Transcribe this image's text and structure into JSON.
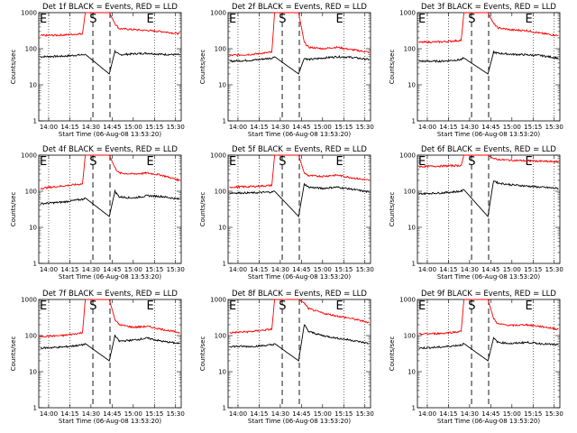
{
  "colors": {
    "events": "#000000",
    "lld": "#ff0000",
    "background": "#ffffff"
  },
  "chart_data": [
    {
      "type": "line",
      "title": "Det 1f BLACK = Events, RED = LLD",
      "xlabel": "Start Time (06-Aug-08 13:53:20)",
      "ylabel": "Counts/sec",
      "x_ticklabels": [
        "14:00",
        "14:15",
        "14:30",
        "14:45",
        "15:00",
        "15:15",
        "15:30"
      ],
      "y_ticklabels": [
        "1",
        "10",
        "100",
        "1000"
      ],
      "ylim": [
        1,
        1000
      ],
      "yscale": "log",
      "xlim": [
        "13:53",
        "15:34"
      ],
      "markers": [
        "E",
        "S",
        "E"
      ],
      "series": [
        {
          "color": "#000000",
          "x": [
            "13:54",
            "14:10",
            "14:24",
            "14:26",
            "14:43",
            "14:47",
            "14:50",
            "15:00",
            "15:10",
            "15:20",
            "15:33"
          ],
          "values": [
            60,
            62,
            68,
            70,
            20,
            85,
            68,
            72,
            75,
            70,
            68
          ]
        },
        {
          "color": "#ff0000",
          "x": [
            "13:54",
            "14:10",
            "14:24",
            "14:26",
            "14:43",
            "14:47",
            "14:50",
            "15:00",
            "15:10",
            "15:20",
            "15:33"
          ],
          "values": [
            230,
            240,
            260,
            1000,
            1000,
            500,
            360,
            340,
            320,
            300,
            260
          ]
        }
      ]
    },
    {
      "type": "line",
      "title": "Det 2f BLACK = Events, RED = LLD",
      "xlabel": "Start Time (06-Aug-08 13:53:20)",
      "ylabel": "Counts/sec",
      "x_ticklabels": [
        "14:00",
        "14:15",
        "14:30",
        "14:45",
        "15:00",
        "15:15",
        "15:30"
      ],
      "y_ticklabels": [
        "1",
        "10",
        "100",
        "1000"
      ],
      "ylim": [
        1,
        1000
      ],
      "yscale": "log",
      "xlim": [
        "13:53",
        "15:34"
      ],
      "markers": [
        "E",
        "S",
        "E"
      ],
      "series": [
        {
          "color": "#000000",
          "x": [
            "13:54",
            "14:10",
            "14:24",
            "14:26",
            "14:43",
            "14:47",
            "14:50",
            "15:00",
            "15:10",
            "15:20",
            "15:33"
          ],
          "values": [
            45,
            48,
            55,
            60,
            20,
            55,
            50,
            55,
            60,
            58,
            50
          ]
        },
        {
          "color": "#ff0000",
          "x": [
            "13:54",
            "14:10",
            "14:24",
            "14:26",
            "14:43",
            "14:47",
            "14:50",
            "15:00",
            "15:10",
            "15:20",
            "15:33"
          ],
          "values": [
            65,
            70,
            80,
            1000,
            1000,
            150,
            110,
            100,
            110,
            95,
            80
          ]
        }
      ]
    },
    {
      "type": "line",
      "title": "Det 3f BLACK = Events, RED = LLD",
      "xlabel": "Start Time (06-Aug-08 13:53:20)",
      "ylabel": "Counts/sec",
      "x_ticklabels": [
        "14:00",
        "14:15",
        "14:30",
        "14:45",
        "15:00",
        "15:15",
        "15:30"
      ],
      "y_ticklabels": [
        "1",
        "10",
        "100",
        "1000"
      ],
      "ylim": [
        1,
        1000
      ],
      "yscale": "log",
      "xlim": [
        "13:53",
        "15:34"
      ],
      "markers": [
        "E",
        "S",
        "E"
      ],
      "series": [
        {
          "color": "#000000",
          "x": [
            "13:54",
            "14:10",
            "14:24",
            "14:26",
            "14:43",
            "14:47",
            "14:50",
            "15:00",
            "15:10",
            "15:20",
            "15:33"
          ],
          "values": [
            45,
            45,
            50,
            55,
            20,
            80,
            75,
            70,
            68,
            65,
            55
          ]
        },
        {
          "color": "#ff0000",
          "x": [
            "13:54",
            "14:10",
            "14:24",
            "14:26",
            "14:43",
            "14:47",
            "14:50",
            "15:00",
            "15:10",
            "15:20",
            "15:33"
          ],
          "values": [
            150,
            155,
            170,
            1000,
            1000,
            500,
            380,
            330,
            320,
            270,
            230
          ]
        }
      ]
    },
    {
      "type": "line",
      "title": "Det 4f BLACK = Events, RED = LLD",
      "xlabel": "Start Time (06-Aug-08 13:53:20)",
      "ylabel": "Counts/sec",
      "x_ticklabels": [
        "14:00",
        "14:15",
        "14:30",
        "14:45",
        "15:00",
        "15:15",
        "15:30"
      ],
      "y_ticklabels": [
        "1",
        "10",
        "100",
        "1000"
      ],
      "ylim": [
        1,
        1000
      ],
      "yscale": "log",
      "xlim": [
        "13:53",
        "15:34"
      ],
      "markers": [
        "E",
        "S",
        "E"
      ],
      "series": [
        {
          "color": "#000000",
          "x": [
            "13:54",
            "14:10",
            "14:24",
            "14:26",
            "14:43",
            "14:47",
            "14:50",
            "15:00",
            "15:10",
            "15:20",
            "15:33"
          ],
          "values": [
            45,
            50,
            60,
            65,
            20,
            100,
            70,
            65,
            75,
            72,
            60
          ]
        },
        {
          "color": "#ff0000",
          "x": [
            "13:54",
            "14:10",
            "14:24",
            "14:26",
            "14:43",
            "14:47",
            "14:50",
            "15:00",
            "15:10",
            "15:20",
            "15:33"
          ],
          "values": [
            120,
            140,
            160,
            1000,
            1000,
            450,
            320,
            300,
            320,
            280,
            200
          ]
        }
      ]
    },
    {
      "type": "line",
      "title": "Det 5f BLACK = Events, RED = LLD",
      "xlabel": "Start Time (06-Aug-08 13:53:20)",
      "ylabel": "Counts/sec",
      "x_ticklabels": [
        "14:00",
        "14:15",
        "14:30",
        "14:45",
        "15:00",
        "15:15",
        "15:30"
      ],
      "y_ticklabels": [
        "1",
        "10",
        "100",
        "1000"
      ],
      "ylim": [
        1,
        1000
      ],
      "yscale": "log",
      "xlim": [
        "13:53",
        "15:34"
      ],
      "markers": [
        "E",
        "S",
        "E"
      ],
      "series": [
        {
          "color": "#000000",
          "x": [
            "13:54",
            "14:10",
            "14:24",
            "14:26",
            "14:43",
            "14:47",
            "14:50",
            "15:00",
            "15:10",
            "15:20",
            "15:33"
          ],
          "values": [
            90,
            90,
            95,
            100,
            20,
            160,
            130,
            120,
            130,
            115,
            95
          ]
        },
        {
          "color": "#ff0000",
          "x": [
            "13:54",
            "14:10",
            "14:24",
            "14:26",
            "14:43",
            "14:47",
            "14:50",
            "15:00",
            "15:10",
            "15:20",
            "15:33"
          ],
          "values": [
            130,
            135,
            145,
            1000,
            1000,
            320,
            270,
            260,
            280,
            240,
            200
          ]
        }
      ]
    },
    {
      "type": "line",
      "title": "Det 6f BLACK = Events, RED = LLD",
      "xlabel": "Start Time (06-Aug-08 13:53:20)",
      "ylabel": "Counts/sec",
      "x_ticklabels": [
        "14:00",
        "14:15",
        "14:30",
        "14:45",
        "15:00",
        "15:15",
        "15:30"
      ],
      "y_ticklabels": [
        "1",
        "10",
        "100",
        "1000"
      ],
      "ylim": [
        1,
        1000
      ],
      "yscale": "log",
      "xlim": [
        "13:53",
        "15:34"
      ],
      "markers": [
        "E",
        "S",
        "E"
      ],
      "series": [
        {
          "color": "#000000",
          "x": [
            "13:54",
            "14:10",
            "14:24",
            "14:26",
            "14:43",
            "14:47",
            "14:50",
            "15:00",
            "15:10",
            "15:20",
            "15:33"
          ],
          "values": [
            85,
            90,
            100,
            110,
            20,
            200,
            170,
            150,
            140,
            130,
            120
          ]
        },
        {
          "color": "#ff0000",
          "x": [
            "13:54",
            "14:10",
            "14:24",
            "14:26",
            "14:43",
            "14:47",
            "14:50",
            "15:00",
            "15:10",
            "15:20",
            "15:33"
          ],
          "values": [
            480,
            500,
            520,
            1000,
            1000,
            800,
            760,
            720,
            700,
            680,
            650
          ]
        }
      ]
    },
    {
      "type": "line",
      "title": "Det 7f BLACK = Events, RED = LLD",
      "xlabel": "Start Time (06-Aug-08 13:53:20)",
      "ylabel": "Counts/sec",
      "x_ticklabels": [
        "14:00",
        "14:15",
        "14:30",
        "14:45",
        "15:00",
        "15:15",
        "15:30"
      ],
      "y_ticklabels": [
        "1",
        "10",
        "100",
        "1000"
      ],
      "ylim": [
        1,
        1000
      ],
      "yscale": "log",
      "xlim": [
        "13:53",
        "15:34"
      ],
      "markers": [
        "E",
        "S",
        "E"
      ],
      "series": [
        {
          "color": "#000000",
          "x": [
            "13:54",
            "14:10",
            "14:24",
            "14:26",
            "14:43",
            "14:47",
            "14:50",
            "15:00",
            "15:10",
            "15:20",
            "15:33"
          ],
          "values": [
            45,
            48,
            55,
            60,
            20,
            100,
            70,
            75,
            85,
            70,
            60
          ]
        },
        {
          "color": "#ff0000",
          "x": [
            "13:54",
            "14:10",
            "14:24",
            "14:26",
            "14:43",
            "14:47",
            "14:50",
            "15:00",
            "15:10",
            "15:20",
            "15:33"
          ],
          "values": [
            95,
            100,
            120,
            1000,
            1000,
            280,
            200,
            170,
            180,
            150,
            120
          ]
        }
      ]
    },
    {
      "type": "line",
      "title": "Det 8f BLACK = Events, RED = LLD",
      "xlabel": "Start Time (06-Aug-08 13:53:20)",
      "ylabel": "Counts/sec",
      "x_ticklabels": [
        "14:00",
        "14:15",
        "14:30",
        "14:45",
        "15:00",
        "15:15",
        "15:30"
      ],
      "y_ticklabels": [
        "1",
        "10",
        "100",
        "1000"
      ],
      "ylim": [
        1,
        1000
      ],
      "yscale": "log",
      "xlim": [
        "13:53",
        "15:34"
      ],
      "markers": [
        "E",
        "S",
        "E"
      ],
      "series": [
        {
          "color": "#000000",
          "x": [
            "13:54",
            "14:10",
            "14:24",
            "14:26",
            "14:43",
            "14:47",
            "14:50",
            "15:00",
            "15:10",
            "15:20",
            "15:33"
          ],
          "values": [
            50,
            50,
            55,
            60,
            20,
            200,
            130,
            100,
            85,
            75,
            60
          ]
        },
        {
          "color": "#ff0000",
          "x": [
            "13:54",
            "14:10",
            "14:24",
            "14:26",
            "14:43",
            "14:47",
            "14:50",
            "15:00",
            "15:10",
            "15:20",
            "15:33"
          ],
          "values": [
            120,
            130,
            150,
            1000,
            1000,
            800,
            560,
            420,
            350,
            300,
            230
          ]
        }
      ]
    },
    {
      "type": "line",
      "title": "Det 9f BLACK = Events, RED = LLD",
      "xlabel": "Start Time (06-Aug-08 13:53:20)",
      "ylabel": "Counts/sec",
      "x_ticklabels": [
        "14:00",
        "14:15",
        "14:30",
        "14:45",
        "15:00",
        "15:15",
        "15:30"
      ],
      "y_ticklabels": [
        "1",
        "10",
        "100",
        "1000"
      ],
      "ylim": [
        1,
        1000
      ],
      "yscale": "log",
      "xlim": [
        "13:53",
        "15:34"
      ],
      "markers": [
        "E",
        "S",
        "E"
      ],
      "series": [
        {
          "color": "#000000",
          "x": [
            "13:54",
            "14:10",
            "14:24",
            "14:26",
            "14:43",
            "14:47",
            "14:50",
            "15:00",
            "15:10",
            "15:20",
            "15:33"
          ],
          "values": [
            45,
            48,
            55,
            60,
            20,
            85,
            65,
            60,
            65,
            60,
            55
          ]
        },
        {
          "color": "#ff0000",
          "x": [
            "13:54",
            "14:10",
            "14:24",
            "14:26",
            "14:43",
            "14:47",
            "14:50",
            "15:00",
            "15:10",
            "15:20",
            "15:33"
          ],
          "values": [
            110,
            115,
            130,
            1000,
            1000,
            300,
            210,
            190,
            200,
            180,
            150
          ]
        }
      ]
    }
  ]
}
